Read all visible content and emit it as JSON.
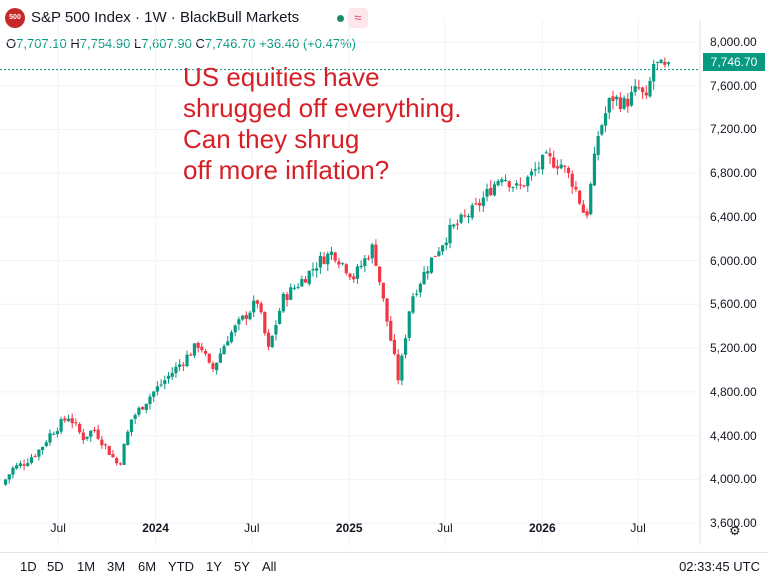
{
  "header": {
    "logo_text": "500",
    "title": "S&P 500 Index · 1W · BlackBull Markets",
    "status_color": "#1b8a64",
    "wave_glyph": "≈",
    "ohlc": {
      "o_label": "O",
      "o": "7,707.10",
      "h_label": "H",
      "h": "7,754.90",
      "l_label": "L",
      "l": "7,607.90",
      "c_label": "C",
      "c": "7,746.70",
      "change": "+36.40 (+0.47%)"
    }
  },
  "annotation": {
    "lines": [
      "US equities have",
      "shrugged off everything.",
      "Can they shrug",
      "off more inflation?"
    ],
    "color": "#d61f26"
  },
  "last_price_label": "7,746.70",
  "settings_icon": "gear-icon",
  "toolbar": {
    "timeframes": [
      "1D",
      "5D",
      "1M",
      "3M",
      "6M",
      "YTD",
      "1Y",
      "5Y",
      "All"
    ],
    "clock": "02:33:45 UTC"
  },
  "chart_data": {
    "type": "candlestick",
    "title": "S&P 500 Index · 1W · BlackBull Markets",
    "ylim": [
      3400,
      8200
    ],
    "y_ticks": [
      {
        "value": 8000,
        "label": "8,000.00"
      },
      {
        "value": 7600,
        "label": "7,600.00"
      },
      {
        "value": 7200,
        "label": "7,200.00"
      },
      {
        "value": 6800,
        "label": "6,800.00"
      },
      {
        "value": 6400,
        "label": "6,400.00"
      },
      {
        "value": 6000,
        "label": "6,000.00"
      },
      {
        "value": 5600,
        "label": "5,600.00"
      },
      {
        "value": 5200,
        "label": "5,200.00"
      },
      {
        "value": 4800,
        "label": "4,800.00"
      },
      {
        "value": 4400,
        "label": "4,400.00"
      },
      {
        "value": 4000,
        "label": "4,000.00"
      },
      {
        "value": 3600,
        "label": "3,600.00"
      }
    ],
    "x_ticks": [
      {
        "date": "2023-07-01",
        "label": "Jul",
        "bold": false
      },
      {
        "date": "2024-01-01",
        "label": "2024",
        "bold": true
      },
      {
        "date": "2024-07-01",
        "label": "Jul",
        "bold": false
      },
      {
        "date": "2025-01-01",
        "label": "2025",
        "bold": true
      },
      {
        "date": "2025-07-01",
        "label": "Jul",
        "bold": false
      },
      {
        "date": "2026-01-01",
        "label": "2026",
        "bold": true
      },
      {
        "date": "2026-07-01",
        "label": "Jul",
        "bold": false
      }
    ],
    "xlim": [
      "2023-03-13",
      "2026-10-26"
    ],
    "up_color": "#089981",
    "down_color": "#f23645",
    "last_price": 7746.7,
    "price_path": [
      {
        "date": "2023-03-20",
        "value": 3950
      },
      {
        "date": "2023-04-10",
        "value": 4100
      },
      {
        "date": "2023-05-01",
        "value": 4150
      },
      {
        "date": "2023-06-01",
        "value": 4280
      },
      {
        "date": "2023-06-20",
        "value": 4420
      },
      {
        "date": "2023-07-25",
        "value": 4580
      },
      {
        "date": "2023-08-20",
        "value": 4380
      },
      {
        "date": "2023-09-10",
        "value": 4460
      },
      {
        "date": "2023-10-05",
        "value": 4280
      },
      {
        "date": "2023-10-27",
        "value": 4120
      },
      {
        "date": "2023-11-20",
        "value": 4550
      },
      {
        "date": "2023-12-28",
        "value": 4780
      },
      {
        "date": "2024-02-15",
        "value": 5030
      },
      {
        "date": "2024-03-28",
        "value": 5250
      },
      {
        "date": "2024-04-19",
        "value": 4980
      },
      {
        "date": "2024-05-20",
        "value": 5300
      },
      {
        "date": "2024-07-15",
        "value": 5630
      },
      {
        "date": "2024-08-05",
        "value": 5180
      },
      {
        "date": "2024-09-01",
        "value": 5650
      },
      {
        "date": "2024-10-15",
        "value": 5860
      },
      {
        "date": "2024-11-10",
        "value": 6000
      },
      {
        "date": "2024-12-05",
        "value": 6080
      },
      {
        "date": "2025-01-13",
        "value": 5850
      },
      {
        "date": "2025-02-19",
        "value": 6130
      },
      {
        "date": "2025-03-13",
        "value": 5550
      },
      {
        "date": "2025-04-08",
        "value": 4900
      },
      {
        "date": "2025-05-01",
        "value": 5650
      },
      {
        "date": "2025-06-10",
        "value": 6020
      },
      {
        "date": "2025-07-15",
        "value": 6280
      },
      {
        "date": "2025-09-01",
        "value": 6480
      },
      {
        "date": "2025-10-20",
        "value": 6790
      },
      {
        "date": "2025-11-20",
        "value": 6650
      },
      {
        "date": "2026-01-10",
        "value": 6930
      },
      {
        "date": "2026-02-10",
        "value": 6880
      },
      {
        "date": "2026-03-05",
        "value": 6700
      },
      {
        "date": "2026-03-28",
        "value": 6380
      },
      {
        "date": "2026-04-20",
        "value": 7150
      },
      {
        "date": "2026-05-15",
        "value": 7500
      },
      {
        "date": "2026-06-10",
        "value": 7430
      },
      {
        "date": "2026-07-05",
        "value": 7580
      },
      {
        "date": "2026-07-20",
        "value": 7450
      },
      {
        "date": "2026-08-03",
        "value": 7800
      },
      {
        "date": "2026-08-24",
        "value": 7746.7
      }
    ]
  }
}
